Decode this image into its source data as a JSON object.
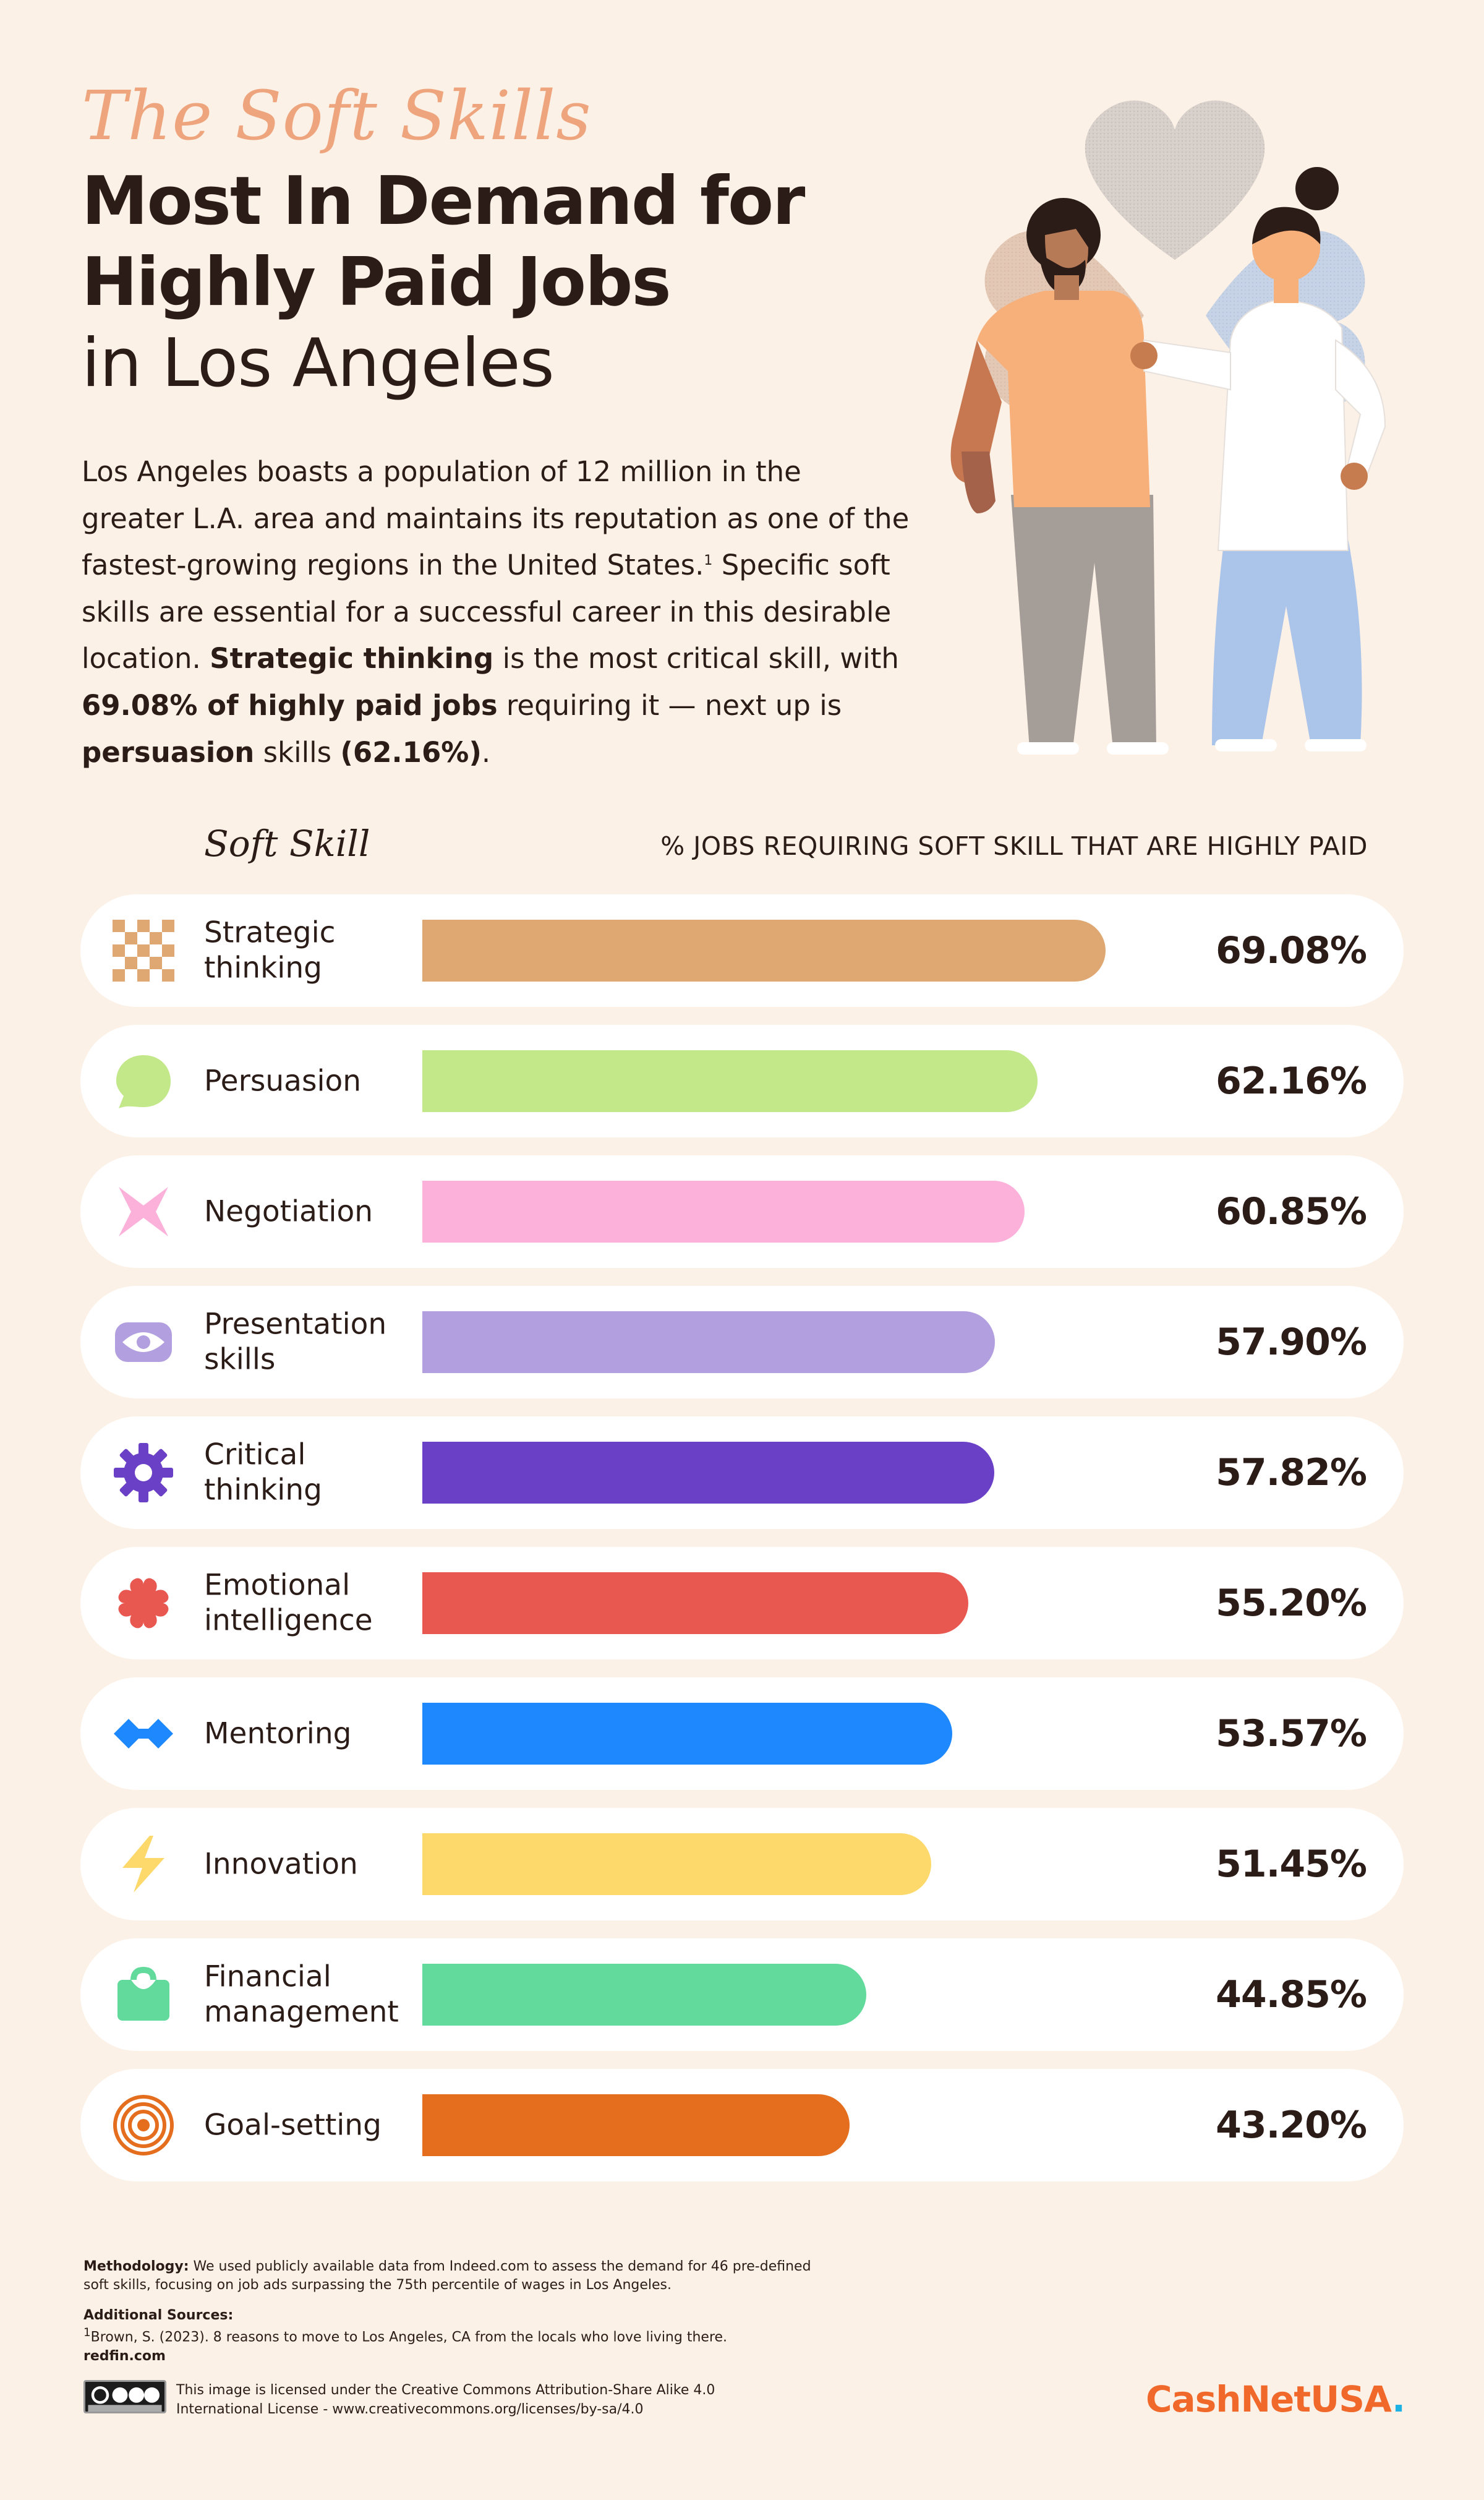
{
  "header": {
    "script_title": "The Soft Skills",
    "title_line1": "Most In Demand for",
    "title_line2": "Highly Paid Jobs",
    "title_line3": "in Los Angeles"
  },
  "intro": {
    "p1": "Los Angeles boasts a population of 12 million in the greater L.A. area and maintains its reputation as one of the fastest-growing regions in the United States.",
    "footnote_mark": "1",
    "p2": " Specific soft skills are essential for a successful career in this desirable location. ",
    "b1": "Strategic thinking",
    "p3": " is the most critical skill, with ",
    "b2": "69.08% of highly paid jobs",
    "p4": " requiring it — next up is ",
    "b3": "persuasion",
    "p5": " skills ",
    "b4": "(62.16%)",
    "p6": "."
  },
  "columns": {
    "left": "Soft Skill",
    "right": "% JOBS REQUIRING SOFT SKILL THAT ARE HIGHLY PAID"
  },
  "chart_data": {
    "type": "bar",
    "orientation": "horizontal",
    "title": "The Soft Skills Most In Demand for Highly Paid Jobs in Los Angeles",
    "xlabel": "% JOBS REQUIRING SOFT SKILL THAT ARE HIGHLY PAID",
    "ylabel": "Soft Skill",
    "xlim": [
      0,
      100
    ],
    "unit": "%",
    "categories": [
      "Strategic thinking",
      "Persuasion",
      "Negotiation",
      "Presentation skills",
      "Critical thinking",
      "Emotional intelligence",
      "Mentoring",
      "Innovation",
      "Financial management",
      "Goal-setting"
    ],
    "values": [
      69.08,
      62.16,
      60.85,
      57.9,
      57.82,
      55.2,
      53.57,
      51.45,
      44.85,
      43.2
    ],
    "value_labels": [
      "69.08%",
      "62.16%",
      "60.85%",
      "57.90%",
      "57.82%",
      "55.20%",
      "53.57%",
      "51.45%",
      "44.85%",
      "43.20%"
    ],
    "colors": [
      "#dfa872",
      "#c2e88a",
      "#fcb1da",
      "#b29fdf",
      "#6a40c6",
      "#e85850",
      "#1e88ff",
      "#fdd86a",
      "#62da9c",
      "#e46d1e"
    ],
    "icons": [
      "checkerboard-icon",
      "speech-bubble-icon",
      "arrows-inward-icon",
      "eye-icon",
      "gear-icon",
      "hearts-icon",
      "diamonds-icon",
      "lightning-icon",
      "briefcase-icon",
      "target-icon"
    ],
    "grid": false,
    "legend": "none"
  },
  "footer": {
    "methodology_label": "Methodology:",
    "methodology_text": " We used publicly available data from Indeed.com to assess the demand for 46 pre-defined soft skills, focusing on job ads surpassing the 75th percentile of wages in Los Angeles.",
    "sources_label": "Additional Sources:",
    "source1_mark": "1",
    "source1": "Brown, S. (2023). 8 reasons to move to Los Angeles, CA from the locals who love living there.",
    "source1_site": "redfin.com",
    "license": "This image is licensed under the Creative Commons Attribution-Share Alike 4.0 International License - www.creativecommons.org/licenses/by-sa/4.0",
    "brand_part1": "CashNet",
    "brand_part2": "USA",
    "brand_dot": "."
  }
}
